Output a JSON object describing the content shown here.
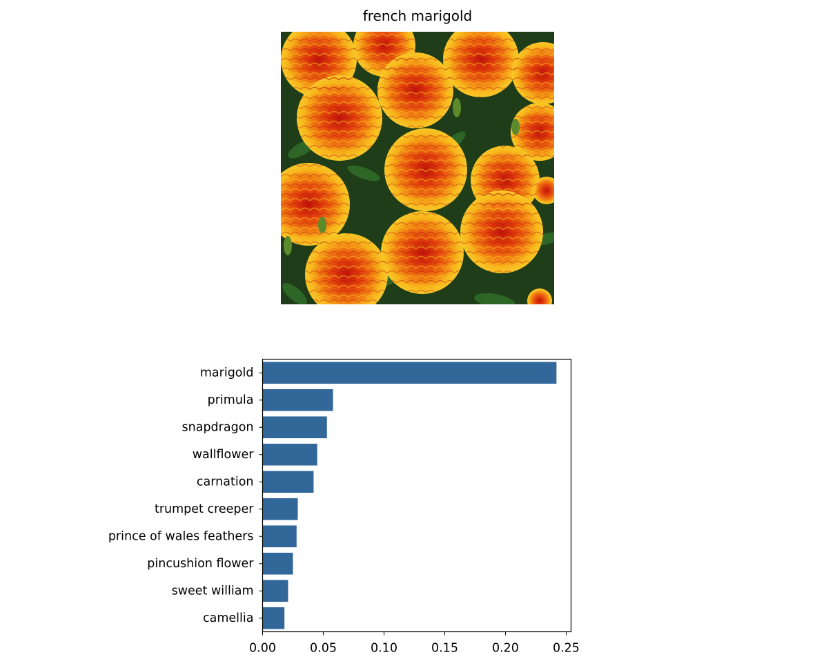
{
  "photo": {
    "title": "french marigold"
  },
  "chart_data": {
    "type": "bar",
    "orientation": "horizontal",
    "categories": [
      "marigold",
      "primula",
      "snapdragon",
      "wallflower",
      "carnation",
      "trumpet creeper",
      "prince of wales feathers",
      "pincushion flower",
      "sweet william",
      "camellia"
    ],
    "values": [
      0.242,
      0.058,
      0.053,
      0.045,
      0.042,
      0.029,
      0.028,
      0.025,
      0.021,
      0.018
    ],
    "xlim": [
      0,
      0.254
    ],
    "xticks": [
      0.0,
      0.05,
      0.1,
      0.15,
      0.2,
      0.25
    ],
    "xtick_labels": [
      "0.00",
      "0.05",
      "0.10",
      "0.15",
      "0.20",
      "0.25"
    ],
    "grid": false,
    "bar_color": "#32679a"
  }
}
